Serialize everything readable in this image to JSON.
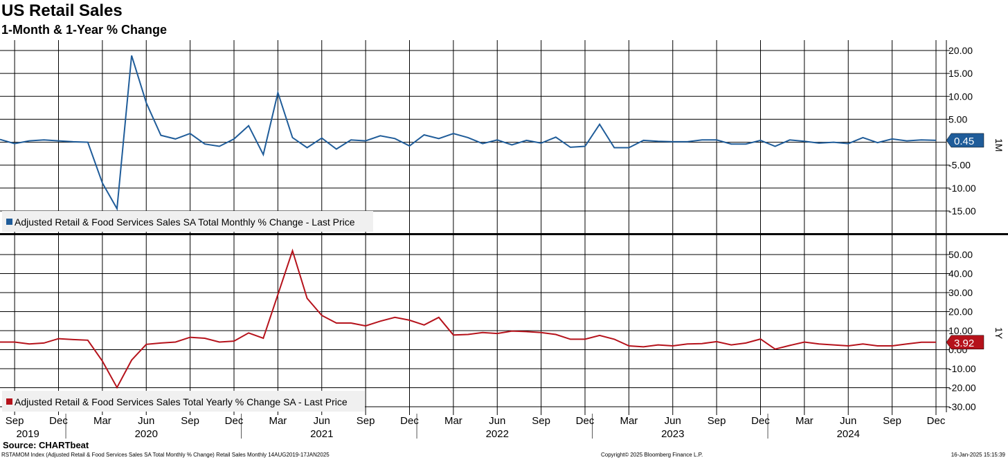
{
  "header": {
    "title": "US Retail Sales",
    "subtitle": "1-Month & 1-Year % Change"
  },
  "footer": {
    "source": "Source: CHARTbeat",
    "description": "RSTAMOM Index (Adjusted Retail & Food Services Sales SA Total Monthly % Change) Retail Sales  Monthly 14AUG2019-17JAN2025",
    "copyright": "Copyright© 2025 Bloomberg Finance L.P.",
    "timestamp": "16-Jan-2025 15:15:39"
  },
  "colors": {
    "monthly": "#1f5c99",
    "yearly": "#b5121b",
    "grid": "#000000",
    "legend_bg": "#f0f0f0"
  },
  "chart_data": [
    {
      "type": "line",
      "panel_tag": "1M",
      "legend": "Adjusted Retail & Food Services Sales SA Total Monthly % Change - Last Price",
      "last_value_label": "0.45",
      "ylim": [
        -20,
        20
      ],
      "y_ticks": [
        "20.00",
        "15.00",
        "10.00",
        "5.00",
        "-5.00",
        "-10.00",
        "-15.00"
      ],
      "y_tick_values": [
        20,
        15,
        10,
        5,
        -5,
        -10,
        -15
      ],
      "x_start": "2019-08",
      "values": [
        0.6,
        -0.3,
        0.3,
        0.5,
        0.3,
        0.1,
        0,
        -8.9,
        -14.5,
        18.9,
        8.6,
        1.5,
        0.7,
        1.9,
        -0.4,
        -0.9,
        0.7,
        3.6,
        -2.7,
        10.8,
        1.0,
        -1.2,
        0.9,
        -1.5,
        0.5,
        0.3,
        1.4,
        0.8,
        -0.8,
        1.6,
        0.8,
        1.9,
        1.0,
        -0.3,
        0.5,
        -0.6,
        0.4,
        -0.2,
        1.1,
        -1.1,
        -0.9,
        3.9,
        -1.2,
        -1.2,
        0.4,
        0.2,
        0.1,
        0.1,
        0.5,
        0.5,
        -0.4,
        -0.4,
        0.4,
        -0.9,
        0.5,
        0.2,
        -0.2,
        0,
        -0.3,
        1.0,
        -0.1,
        0.7,
        0.3,
        0.5,
        0.4
      ]
    },
    {
      "type": "line",
      "panel_tag": "1Y",
      "legend": "Adjusted Retail & Food Services Sales Total Yearly % Change SA - Last Price",
      "last_value_label": "3.92",
      "ylim": [
        -35,
        60
      ],
      "y_ticks": [
        "50.00",
        "40.00",
        "30.00",
        "20.00",
        "10.00",
        "0.00",
        "-10.00",
        "-20.00",
        "-30.00"
      ],
      "y_tick_values": [
        50,
        40,
        30,
        20,
        10,
        0,
        -10,
        -20,
        -30
      ],
      "x_start": "2019-08",
      "values": [
        4.0,
        4.0,
        3.0,
        3.5,
        5.8,
        5.3,
        5.0,
        -6.0,
        -19.9,
        -5.5,
        2.8,
        3.5,
        4.0,
        6.5,
        6.0,
        4.0,
        4.5,
        8.8,
        6.0,
        29.0,
        52.0,
        27.0,
        18.0,
        14.0,
        14.0,
        12.5,
        15.0,
        17.0,
        15.5,
        13.0,
        17.0,
        7.7,
        8.0,
        9.0,
        8.5,
        9.8,
        9.5,
        9.0,
        8.0,
        5.5,
        5.5,
        7.5,
        5.5,
        2.0,
        1.5,
        2.5,
        2.0,
        3.0,
        3.2,
        4.2,
        2.5,
        3.5,
        5.6,
        0.3,
        2.2,
        4.0,
        3.0,
        2.5,
        2.0,
        3.0,
        2.0,
        2.0,
        3.0,
        3.9,
        3.9
      ]
    }
  ],
  "x_axis": {
    "months": [
      {
        "label": "Sep",
        "index": 1
      },
      {
        "label": "Dec",
        "index": 4
      },
      {
        "label": "Mar",
        "index": 7
      },
      {
        "label": "Jun",
        "index": 10
      },
      {
        "label": "Sep",
        "index": 13
      },
      {
        "label": "Dec",
        "index": 16
      },
      {
        "label": "Mar",
        "index": 19
      },
      {
        "label": "Jun",
        "index": 22
      },
      {
        "label": "Sep",
        "index": 25
      },
      {
        "label": "Dec",
        "index": 28
      },
      {
        "label": "Mar",
        "index": 31
      },
      {
        "label": "Jun",
        "index": 34
      },
      {
        "label": "Sep",
        "index": 37
      },
      {
        "label": "Dec",
        "index": 40
      },
      {
        "label": "Mar",
        "index": 43
      },
      {
        "label": "Jun",
        "index": 46
      },
      {
        "label": "Sep",
        "index": 49
      },
      {
        "label": "Dec",
        "index": 52
      },
      {
        "label": "Mar",
        "index": 55
      },
      {
        "label": "Jun",
        "index": 58
      },
      {
        "label": "Sep",
        "index": 61
      },
      {
        "label": "Dec",
        "index": 64
      }
    ],
    "years": [
      {
        "label": "2019",
        "index": 1
      },
      {
        "label": "2020",
        "index": 10
      },
      {
        "label": "2021",
        "index": 22
      },
      {
        "label": "2022",
        "index": 34
      },
      {
        "label": "2023",
        "index": 46
      },
      {
        "label": "2024",
        "index": 58
      }
    ],
    "year_starts": [
      5,
      17,
      29,
      41,
      53
    ]
  }
}
